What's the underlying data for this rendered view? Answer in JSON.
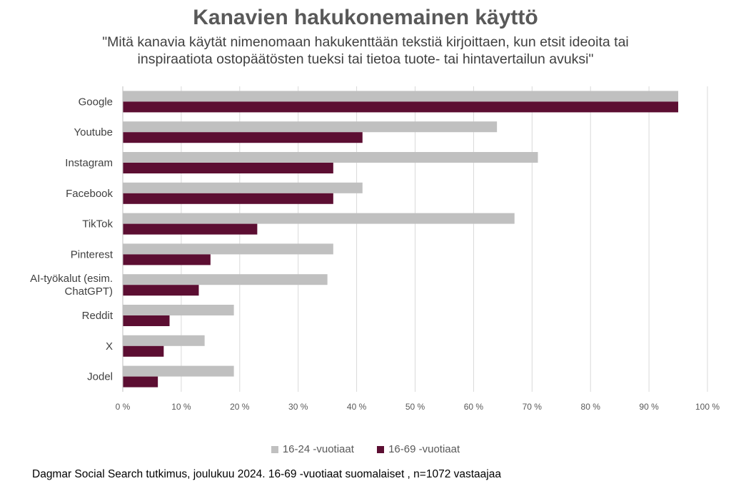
{
  "chart_data": {
    "type": "bar",
    "orientation": "horizontal",
    "title": "Kanavien hakukonemainen käyttö",
    "subtitle_lines": [
      "\"Mitä kanavia käytät nimenomaan hakukenttään tekstiä kirjoittaen, kun etsit ideoita tai",
      "inspiraatiota ostopäätösten tueksi tai tietoa tuote- tai hintavertailun avuksi\""
    ],
    "categories": [
      "Google",
      "Youtube",
      "Instagram",
      "Facebook",
      "TikTok",
      "Pinterest",
      "AI-työkalut (esim. ChatGPT)",
      "Reddit",
      "X",
      "Jodel"
    ],
    "category_lines": [
      [
        "Google"
      ],
      [
        "Youtube"
      ],
      [
        "Instagram"
      ],
      [
        "Facebook"
      ],
      [
        "TikTok"
      ],
      [
        "Pinterest"
      ],
      [
        "AI-työkalut (esim.",
        "ChatGPT)"
      ],
      [
        "Reddit"
      ],
      [
        "X"
      ],
      [
        "Jodel"
      ]
    ],
    "series": [
      {
        "name": "16-24 -vuotiaat",
        "color": "#c0c0c0",
        "values": [
          95,
          64,
          71,
          41,
          67,
          36,
          35,
          19,
          14,
          19
        ]
      },
      {
        "name": "16-69 -vuotiaat",
        "color": "#5c0e32",
        "values": [
          95,
          41,
          36,
          36,
          23,
          15,
          13,
          8,
          7,
          6
        ]
      }
    ],
    "xlim": [
      0,
      100
    ],
    "xticks": [
      "0 %",
      "10 %",
      "20 %",
      "30 %",
      "40 %",
      "50 %",
      "60 %",
      "70 %",
      "80 %",
      "90 %",
      "100 %"
    ],
    "grid": true,
    "legend_position": "bottom",
    "footnote": "Dagmar Social Search tutkimus, joulukuu 2024. 16-69 -vuotiaat suomalaiset , n=1072 vastaajaa"
  }
}
